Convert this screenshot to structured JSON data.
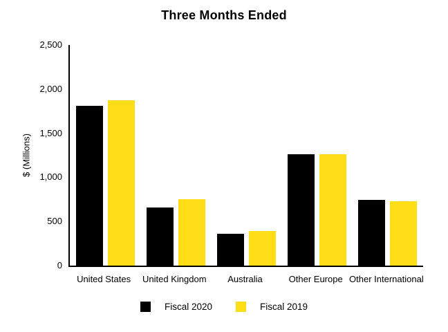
{
  "chart_data": {
    "type": "bar",
    "title": "Three Months Ended",
    "xlabel": "",
    "ylabel": "$ (Millions)",
    "categories": [
      "United States",
      "United Kingdom",
      "Australia",
      "Other Europe",
      "Other International"
    ],
    "series": [
      {
        "name": "Fiscal 2020",
        "color": "#000000",
        "values": [
          1810,
          660,
          360,
          1265,
          745
        ]
      },
      {
        "name": "Fiscal 2019",
        "color": "#FFDE17",
        "values": [
          1870,
          750,
          390,
          1265,
          730
        ]
      }
    ],
    "ylim": [
      0,
      2500
    ],
    "yticks": [
      0,
      500,
      1000,
      1500,
      2000,
      2500
    ],
    "ytick_labels": [
      "0",
      "500",
      "1,000",
      "1,500",
      "2,000",
      "2,500"
    ],
    "grid": false,
    "legend_position": "bottom",
    "background_color": "#ffffff",
    "text_color": "#000000"
  }
}
